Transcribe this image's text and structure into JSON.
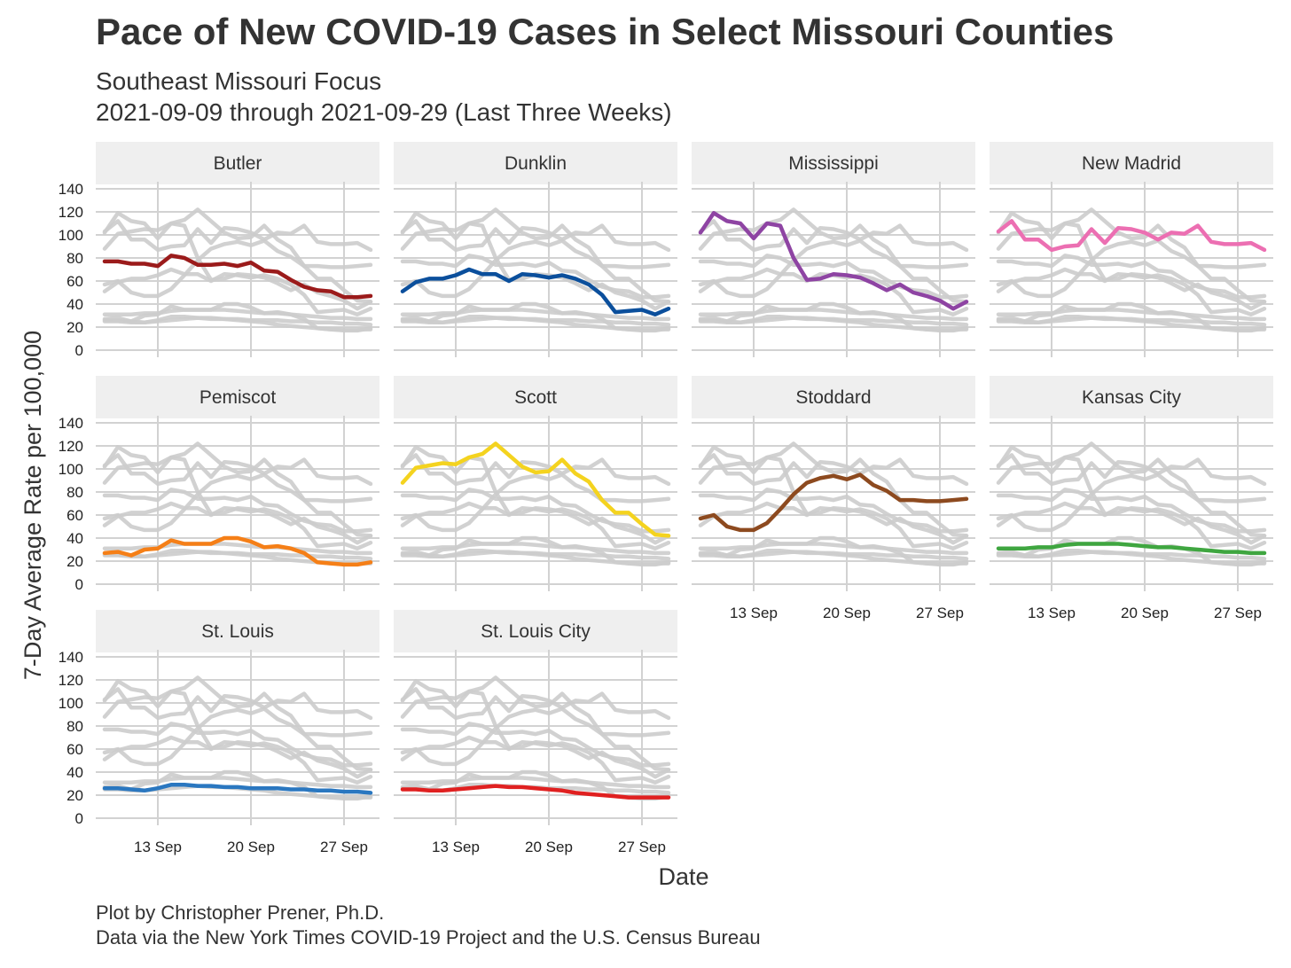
{
  "title": "Pace of New COVID-19 Cases in Select Missouri Counties",
  "subtitle_line1": "Southeast Missouri Focus",
  "subtitle_line2": "2021-09-09 through 2021-09-29 (Last Three Weeks)",
  "caption_line1": "Plot by Christopher Prener, Ph.D.",
  "caption_line2": "Data via the New York Times COVID-19 Project and the U.S. Census Bureau",
  "chart_data": {
    "type": "line",
    "facets": true,
    "xlabel": "Date",
    "ylabel": "7-Day Average Rate per 100,000",
    "x": [
      "2021-09-09",
      "2021-09-10",
      "2021-09-11",
      "2021-09-12",
      "2021-09-13",
      "2021-09-14",
      "2021-09-15",
      "2021-09-16",
      "2021-09-17",
      "2021-09-18",
      "2021-09-19",
      "2021-09-20",
      "2021-09-21",
      "2021-09-22",
      "2021-09-23",
      "2021-09-24",
      "2021-09-25",
      "2021-09-26",
      "2021-09-27",
      "2021-09-28",
      "2021-09-29"
    ],
    "x_tick_labels": [
      "13 Sep",
      "20 Sep",
      "27 Sep"
    ],
    "x_tick_dates": [
      "2021-09-13",
      "2021-09-20",
      "2021-09-27"
    ],
    "ylim": [
      0,
      140
    ],
    "y_ticks": [
      0,
      20,
      40,
      60,
      80,
      100,
      120,
      140
    ],
    "grid": true,
    "background_line_color": "#cccccc",
    "series": [
      {
        "name": "Butler",
        "color": "#9b1b1b",
        "values": [
          77,
          77,
          75,
          75,
          73,
          82,
          80,
          74,
          74,
          75,
          73,
          76,
          69,
          68,
          61,
          55,
          52,
          51,
          46,
          46,
          47
        ]
      },
      {
        "name": "Dunklin",
        "color": "#0b4f9c",
        "values": [
          51,
          59,
          62,
          62,
          65,
          70,
          66,
          66,
          60,
          66,
          65,
          63,
          65,
          62,
          57,
          48,
          33,
          34,
          35,
          31,
          36
        ]
      },
      {
        "name": "Mississippi",
        "color": "#8e44a3",
        "values": [
          102,
          119,
          112,
          110,
          97,
          110,
          108,
          80,
          61,
          62,
          66,
          65,
          63,
          58,
          52,
          57,
          50,
          47,
          43,
          36,
          42
        ]
      },
      {
        "name": "New Madrid",
        "color": "#ec6fb2",
        "values": [
          103,
          112,
          96,
          96,
          87,
          90,
          91,
          105,
          93,
          106,
          105,
          102,
          96,
          102,
          101,
          108,
          94,
          92,
          92,
          93,
          87
        ]
      },
      {
        "name": "Pemiscot",
        "color": "#f57f17",
        "values": [
          27,
          28,
          25,
          30,
          31,
          38,
          35,
          35,
          35,
          40,
          40,
          37,
          32,
          33,
          31,
          27,
          19,
          18,
          17,
          17,
          19
        ]
      },
      {
        "name": "Scott",
        "color": "#f4d31f",
        "values": [
          88,
          101,
          103,
          105,
          104,
          110,
          113,
          122,
          112,
          102,
          97,
          98,
          108,
          96,
          89,
          73,
          62,
          62,
          52,
          43,
          42
        ]
      },
      {
        "name": "Stoddard",
        "color": "#8d4a1f",
        "values": [
          57,
          60,
          50,
          47,
          47,
          53,
          65,
          78,
          88,
          92,
          94,
          91,
          95,
          86,
          81,
          73,
          73,
          72,
          72,
          73,
          74
        ]
      },
      {
        "name": "Kansas City",
        "color": "#3fa640",
        "values": [
          31,
          31,
          31,
          32,
          32,
          34,
          35,
          35,
          35,
          35,
          34,
          33,
          32,
          32,
          31,
          30,
          29,
          28,
          28,
          27,
          27
        ]
      },
      {
        "name": "St. Louis",
        "color": "#2a77c0",
        "values": [
          26,
          26,
          25,
          24,
          26,
          29,
          29,
          28,
          28,
          27,
          27,
          26,
          26,
          26,
          25,
          25,
          24,
          24,
          23,
          23,
          22
        ]
      },
      {
        "name": "St. Louis City",
        "color": "#e02020",
        "values": [
          25,
          25,
          24,
          24,
          25,
          26,
          27,
          28,
          27,
          27,
          26,
          25,
          24,
          22,
          21,
          20,
          19,
          18,
          18,
          18,
          18
        ]
      }
    ]
  }
}
